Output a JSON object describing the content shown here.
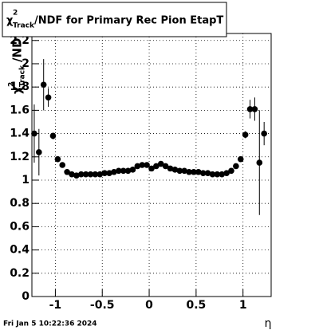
{
  "chart_data": {
    "type": "errorbar",
    "title": {
      "symbol": "χ",
      "superscript": "2",
      "subscript": "Track",
      "text": "/NDF for Primary Rec Pion EtapT"
    },
    "y_label": {
      "symbol": "χ",
      "superscript": "2",
      "subscript": "Track",
      "text": "/NDF"
    },
    "x_label": "η",
    "footer": "Fri Jan  5 10:22:36 2024",
    "x": [
      -1.225,
      -1.175,
      -1.125,
      -1.075,
      -1.025,
      -0.975,
      -0.925,
      -0.875,
      -0.825,
      -0.775,
      -0.725,
      -0.675,
      -0.625,
      -0.575,
      -0.525,
      -0.475,
      -0.425,
      -0.375,
      -0.325,
      -0.275,
      -0.225,
      -0.175,
      -0.125,
      -0.075,
      -0.025,
      0.025,
      0.075,
      0.125,
      0.175,
      0.225,
      0.275,
      0.325,
      0.375,
      0.425,
      0.475,
      0.525,
      0.575,
      0.625,
      0.675,
      0.725,
      0.775,
      0.825,
      0.875,
      0.925,
      0.975,
      1.025,
      1.075,
      1.125,
      1.175,
      1.225
    ],
    "values": [
      1.4,
      1.24,
      1.82,
      1.71,
      1.38,
      1.18,
      1.13,
      1.07,
      1.05,
      1.04,
      1.05,
      1.05,
      1.05,
      1.05,
      1.05,
      1.06,
      1.06,
      1.07,
      1.08,
      1.08,
      1.08,
      1.09,
      1.12,
      1.13,
      1.13,
      1.1,
      1.12,
      1.14,
      1.12,
      1.1,
      1.09,
      1.08,
      1.08,
      1.07,
      1.07,
      1.07,
      1.06,
      1.06,
      1.05,
      1.05,
      1.05,
      1.06,
      1.08,
      1.12,
      1.18,
      1.39,
      1.61,
      1.61,
      1.15,
      1.4
    ],
    "errors": [
      0.25,
      0.2,
      0.22,
      0.08,
      0.03,
      0.02,
      0.01,
      0.01,
      0.01,
      0.01,
      0.01,
      0.01,
      0.01,
      0.01,
      0.01,
      0.01,
      0.01,
      0.01,
      0.01,
      0.01,
      0.01,
      0.01,
      0.01,
      0.01,
      0.01,
      0.01,
      0.01,
      0.01,
      0.01,
      0.01,
      0.01,
      0.01,
      0.01,
      0.01,
      0.01,
      0.01,
      0.01,
      0.01,
      0.01,
      0.01,
      0.01,
      0.01,
      0.01,
      0.01,
      0.02,
      0.03,
      0.08,
      0.1,
      0.45,
      0.1
    ],
    "color": "#000000",
    "xlim": [
      -1.25,
      1.3
    ],
    "ylim": [
      0,
      2.26
    ],
    "xticks": [
      -1,
      -0.5,
      0,
      0.5,
      1
    ],
    "yticks": [
      0,
      0.2,
      0.4,
      0.6,
      0.8,
      1,
      1.2,
      1.4,
      1.6,
      1.8,
      2,
      2.2
    ],
    "grid": true
  }
}
